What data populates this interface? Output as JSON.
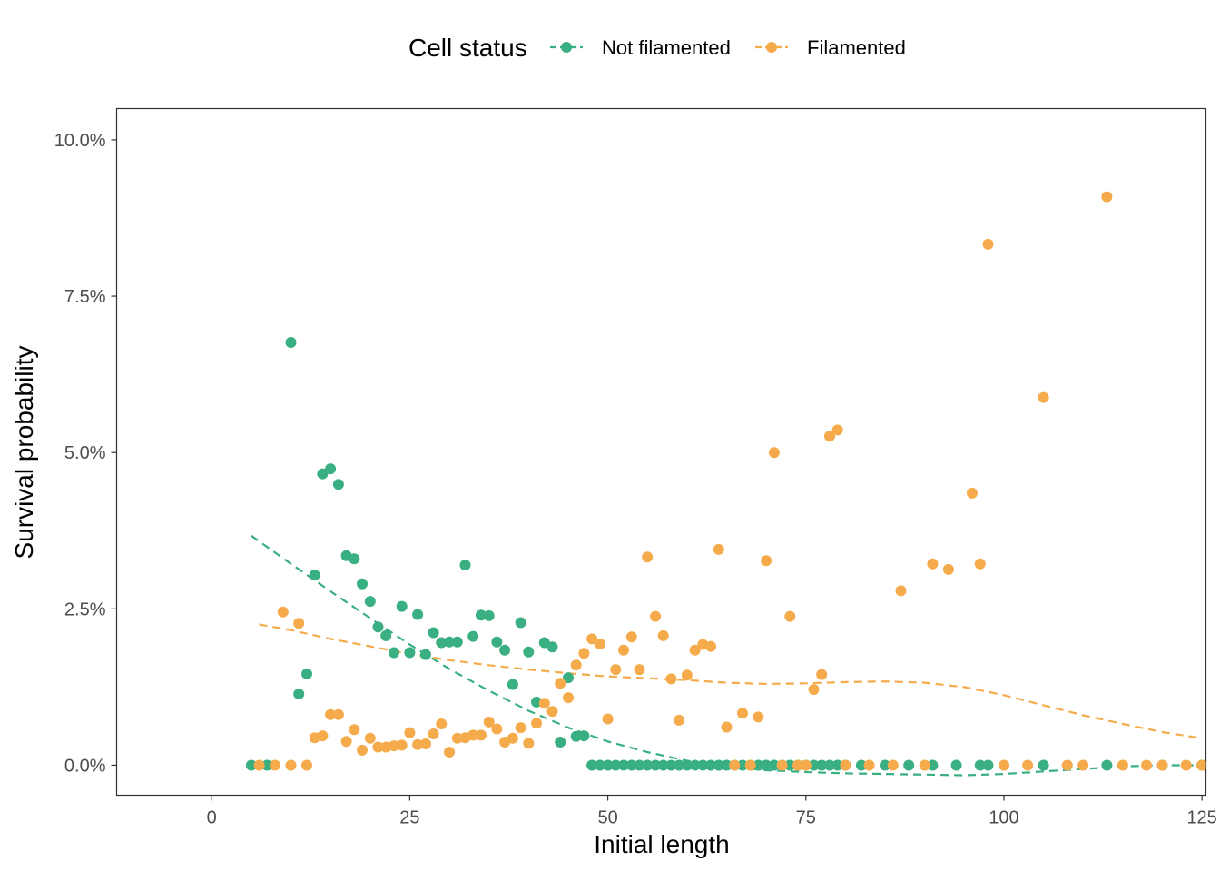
{
  "legend": {
    "title": "Cell status",
    "position": "top",
    "entries": [
      {
        "label": "Not filamented",
        "color": "#3aaf82"
      },
      {
        "label": "Filamented",
        "color": "#f5ab4b"
      }
    ]
  },
  "chart_data": {
    "type": "scatter",
    "xlabel": "Initial length",
    "ylabel": "Survival probability",
    "xlim": [
      -12,
      125.5
    ],
    "ylim": [
      -0.48,
      10.5
    ],
    "x_ticks": [
      0,
      25,
      50,
      75,
      100,
      125
    ],
    "x_tick_labels": [
      "0",
      "25",
      "50",
      "75",
      "100",
      "125"
    ],
    "y_ticks": [
      0,
      2.5,
      5.0,
      7.5,
      10.0
    ],
    "y_tick_labels": [
      "0.0%",
      "2.5%",
      "5.0%",
      "7.5%",
      "10.0%"
    ],
    "y_unit": "percent",
    "grid": false,
    "trend_line_style": "dashed smooth",
    "series": [
      {
        "name": "Not filamented",
        "color": "#3aaf82",
        "points": [
          [
            5,
            0
          ],
          [
            7,
            0
          ],
          [
            10,
            6.76
          ],
          [
            11,
            1.14
          ],
          [
            12,
            1.46
          ],
          [
            13,
            3.04
          ],
          [
            14,
            4.66
          ],
          [
            15,
            4.74
          ],
          [
            16,
            4.49
          ],
          [
            17,
            3.35
          ],
          [
            18,
            3.3
          ],
          [
            19,
            2.9
          ],
          [
            20,
            2.62
          ],
          [
            21,
            2.21
          ],
          [
            22,
            2.07
          ],
          [
            23,
            1.8
          ],
          [
            24,
            2.54
          ],
          [
            25,
            1.8
          ],
          [
            26,
            2.41
          ],
          [
            27,
            1.77
          ],
          [
            28,
            2.12
          ],
          [
            29,
            1.96
          ],
          [
            30,
            1.97
          ],
          [
            31,
            1.97
          ],
          [
            32,
            3.2
          ],
          [
            33,
            2.06
          ],
          [
            34,
            2.4
          ],
          [
            35,
            2.39
          ],
          [
            36,
            1.97
          ],
          [
            37,
            1.84
          ],
          [
            38,
            1.29
          ],
          [
            39,
            2.28
          ],
          [
            40,
            1.81
          ],
          [
            41,
            1.01
          ],
          [
            42,
            1.96
          ],
          [
            43,
            1.89
          ],
          [
            44,
            0.37
          ],
          [
            45,
            1.4
          ],
          [
            46,
            0.46
          ],
          [
            47,
            0.47
          ],
          [
            48,
            0
          ],
          [
            49,
            0
          ],
          [
            50,
            0
          ],
          [
            51,
            0
          ],
          [
            52,
            0
          ],
          [
            53,
            0
          ],
          [
            54,
            0
          ],
          [
            55,
            0
          ],
          [
            56,
            0
          ],
          [
            57,
            0
          ],
          [
            58,
            0
          ],
          [
            59,
            0
          ],
          [
            60,
            0
          ],
          [
            61,
            0
          ],
          [
            62,
            0
          ],
          [
            63,
            0
          ],
          [
            64,
            0
          ],
          [
            65,
            0
          ],
          [
            66,
            0
          ],
          [
            67,
            0
          ],
          [
            68,
            0
          ],
          [
            69,
            0
          ],
          [
            70,
            0
          ],
          [
            71,
            0
          ],
          [
            72,
            0
          ],
          [
            73,
            0
          ],
          [
            74,
            0
          ],
          [
            75,
            0
          ],
          [
            76,
            0
          ],
          [
            77,
            0
          ],
          [
            78,
            0
          ],
          [
            79,
            0
          ],
          [
            80,
            0
          ],
          [
            82,
            0
          ],
          [
            85,
            0
          ],
          [
            88,
            0
          ],
          [
            91,
            0
          ],
          [
            94,
            0
          ],
          [
            97,
            0
          ],
          [
            98,
            0
          ],
          [
            105,
            0
          ],
          [
            113,
            0
          ],
          [
            120,
            0
          ],
          [
            125,
            0
          ]
        ],
        "trend": [
          [
            5,
            3.67
          ],
          [
            10,
            3.22
          ],
          [
            15,
            2.78
          ],
          [
            20,
            2.35
          ],
          [
            25,
            1.93
          ],
          [
            30,
            1.54
          ],
          [
            35,
            1.19
          ],
          [
            40,
            0.87
          ],
          [
            45,
            0.6
          ],
          [
            50,
            0.38
          ],
          [
            55,
            0.21
          ],
          [
            60,
            0.07
          ],
          [
            65,
            -0.02
          ],
          [
            70,
            -0.08
          ],
          [
            75,
            -0.11
          ],
          [
            80,
            -0.13
          ],
          [
            85,
            -0.14
          ],
          [
            90,
            -0.15
          ],
          [
            95,
            -0.16
          ],
          [
            100,
            -0.14
          ],
          [
            105,
            -0.1
          ],
          [
            110,
            -0.06
          ],
          [
            115,
            -0.02
          ],
          [
            120,
            0.0
          ],
          [
            125,
            0.0
          ]
        ]
      },
      {
        "name": "Filamented",
        "color": "#f5ab4b",
        "points": [
          [
            6,
            0
          ],
          [
            8,
            0
          ],
          [
            9,
            2.45
          ],
          [
            10,
            0
          ],
          [
            11,
            2.27
          ],
          [
            12,
            0
          ],
          [
            13,
            0.44
          ],
          [
            14,
            0.47
          ],
          [
            15,
            0.81
          ],
          [
            16,
            0.81
          ],
          [
            17,
            0.38
          ],
          [
            18,
            0.57
          ],
          [
            19,
            0.24
          ],
          [
            20,
            0.43
          ],
          [
            21,
            0.29
          ],
          [
            22,
            0.29
          ],
          [
            23,
            0.31
          ],
          [
            24,
            0.32
          ],
          [
            25,
            0.52
          ],
          [
            26,
            0.33
          ],
          [
            27,
            0.34
          ],
          [
            28,
            0.5
          ],
          [
            29,
            0.66
          ],
          [
            30,
            0.21
          ],
          [
            31,
            0.43
          ],
          [
            32,
            0.44
          ],
          [
            33,
            0.48
          ],
          [
            34,
            0.48
          ],
          [
            35,
            0.69
          ],
          [
            36,
            0.58
          ],
          [
            37,
            0.37
          ],
          [
            38,
            0.43
          ],
          [
            39,
            0.6
          ],
          [
            40,
            0.35
          ],
          [
            41,
            0.67
          ],
          [
            42,
            0.99
          ],
          [
            43,
            0.86
          ],
          [
            44,
            1.31
          ],
          [
            45,
            1.08
          ],
          [
            46,
            1.6
          ],
          [
            47,
            1.79
          ],
          [
            48,
            2.02
          ],
          [
            49,
            1.94
          ],
          [
            50,
            0.74
          ],
          [
            51,
            1.53
          ],
          [
            52,
            1.84
          ],
          [
            53,
            2.05
          ],
          [
            54,
            1.53
          ],
          [
            55,
            3.33
          ],
          [
            56,
            2.38
          ],
          [
            57,
            2.07
          ],
          [
            58,
            1.38
          ],
          [
            59,
            0.72
          ],
          [
            60,
            1.44
          ],
          [
            61,
            1.84
          ],
          [
            62,
            1.93
          ],
          [
            63,
            1.9
          ],
          [
            64,
            3.45
          ],
          [
            65,
            0.61
          ],
          [
            66,
            0
          ],
          [
            67,
            0.83
          ],
          [
            68,
            0
          ],
          [
            69,
            0.77
          ],
          [
            70,
            3.27
          ],
          [
            71,
            5.0
          ],
          [
            72,
            0
          ],
          [
            73,
            2.38
          ],
          [
            74,
            0
          ],
          [
            75,
            0
          ],
          [
            76,
            1.21
          ],
          [
            77,
            1.45
          ],
          [
            78,
            5.26
          ],
          [
            79,
            5.36
          ],
          [
            80,
            0
          ],
          [
            83,
            0
          ],
          [
            86,
            0
          ],
          [
            87,
            2.79
          ],
          [
            90,
            0
          ],
          [
            91,
            3.22
          ],
          [
            93,
            3.13
          ],
          [
            96,
            4.35
          ],
          [
            97,
            3.22
          ],
          [
            98,
            8.33
          ],
          [
            100,
            0
          ],
          [
            103,
            0
          ],
          [
            105,
            5.88
          ],
          [
            108,
            0
          ],
          [
            110,
            0
          ],
          [
            113,
            9.09
          ],
          [
            115,
            0
          ],
          [
            118,
            0
          ],
          [
            120,
            0
          ],
          [
            123,
            0
          ],
          [
            125,
            0
          ]
        ],
        "trend": [
          [
            6,
            2.25
          ],
          [
            10,
            2.16
          ],
          [
            15,
            2.02
          ],
          [
            20,
            1.9
          ],
          [
            25,
            1.78
          ],
          [
            30,
            1.68
          ],
          [
            35,
            1.6
          ],
          [
            40,
            1.53
          ],
          [
            45,
            1.47
          ],
          [
            50,
            1.42
          ],
          [
            55,
            1.39
          ],
          [
            60,
            1.36
          ],
          [
            65,
            1.32
          ],
          [
            70,
            1.3
          ],
          [
            75,
            1.31
          ],
          [
            80,
            1.33
          ],
          [
            85,
            1.34
          ],
          [
            90,
            1.32
          ],
          [
            95,
            1.25
          ],
          [
            100,
            1.12
          ],
          [
            105,
            0.96
          ],
          [
            110,
            0.8
          ],
          [
            115,
            0.66
          ],
          [
            120,
            0.53
          ],
          [
            125,
            0.43
          ]
        ]
      }
    ]
  }
}
